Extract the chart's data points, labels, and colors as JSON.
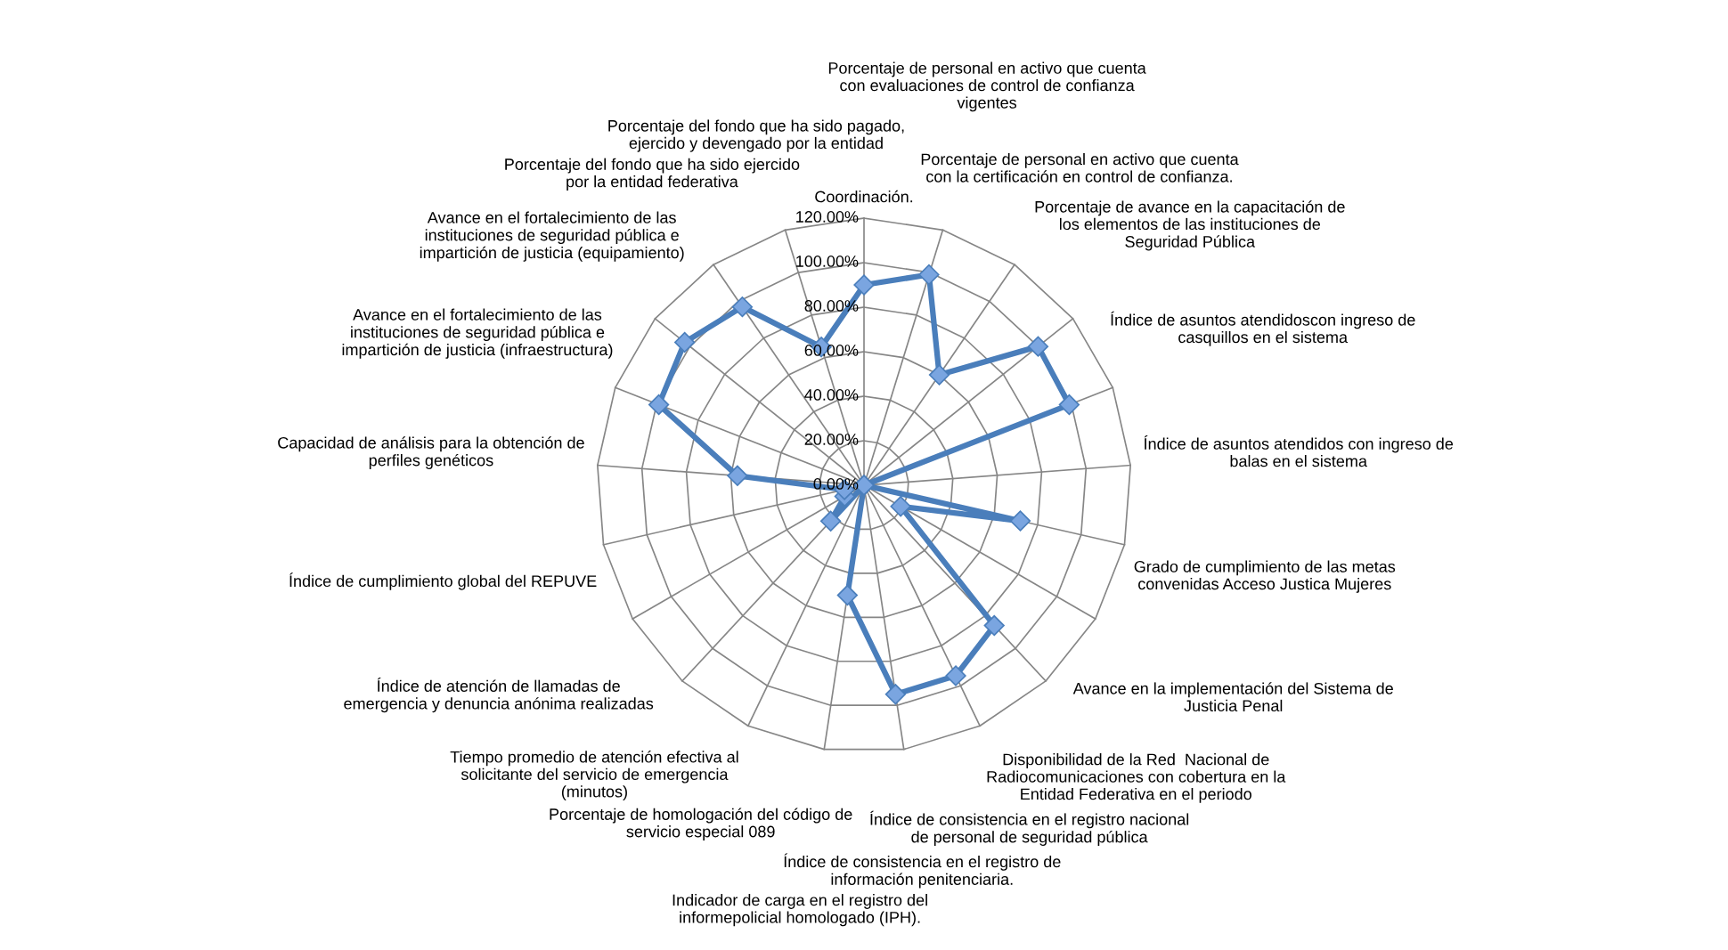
{
  "chart_data": {
    "type": "radar",
    "categories": [
      "Coordinación.",
      "Porcentaje de personal en activo que cuenta\ncon evaluaciones de control de confianza\nvigentes",
      "Porcentaje de personal en activo que cuenta\ncon la certificación en control de confianza.",
      "Porcentaje de avance en la capacitación de\nlos elementos de las instituciones de\nSeguridad Pública",
      "Índice de asuntos atendidoscon ingreso de\ncasquillos en el sistema",
      "Índice de asuntos atendidos con ingreso de\nbalas en el sistema",
      "Grado de cumplimiento de las metas\nconvenidas Acceso Justica Mujeres",
      "Avance en la implementación del Sistema de\nJusticia Penal",
      "Disponibilidad de la Red  Nacional de\nRadiocomunicaciones con cobertura en la\nEntidad Federativa en el periodo",
      "Índice de consistencia en el registro nacional\nde personal de seguridad pública",
      "Índice de consistencia en el registro de\ninformación penitenciaria.",
      "Indicador de carga en el registro del\ninformepolicial homologado (IPH).",
      "Porcentaje de homologación del código de\nservicio especial 089",
      "Tiempo promedio de atención efectiva al\nsolicitante del servicio de emergencia\n(minutos)",
      "Índice de atención de llamadas de\nemergencia y denuncia anónima realizadas",
      "Índice de cumplimiento global del REPUVE",
      "Capacidad de análisis para la obtención de\nperfiles genéticos",
      "Avance en el fortalecimiento de las\ninstituciones de seguridad pública e\nimpartición de justicia (infraestructura)",
      "Avance en el fortalecimiento de las\ninstituciones de seguridad pública e\nimpartición de justicia (equipamiento)",
      "Porcentaje del fondo que ha sido ejercido\npor la entidad federativa",
      "Porcentaje del fondo que ha sido pagado,\nejercido y devengado por la entidad"
    ],
    "series": [
      {
        "color": "#4a7ebb",
        "values": [
          90,
          99,
          60,
          100,
          99,
          0,
          72,
          19,
          86,
          95,
          95,
          50,
          0,
          22,
          10,
          9,
          57,
          99,
          103,
          97,
          65
        ]
      }
    ],
    "ylim": [
      0,
      120
    ],
    "yticks": [
      {
        "value": 0,
        "label": "0.00%"
      },
      {
        "value": 20,
        "label": "20.00%"
      },
      {
        "value": 40,
        "label": "40.00%"
      },
      {
        "value": 60,
        "label": "60.00%"
      },
      {
        "value": 80,
        "label": "80.00%"
      },
      {
        "value": 100,
        "label": "100.00%"
      },
      {
        "value": 120,
        "label": "120.00%"
      }
    ],
    "grid": true,
    "marker": "diamond"
  }
}
